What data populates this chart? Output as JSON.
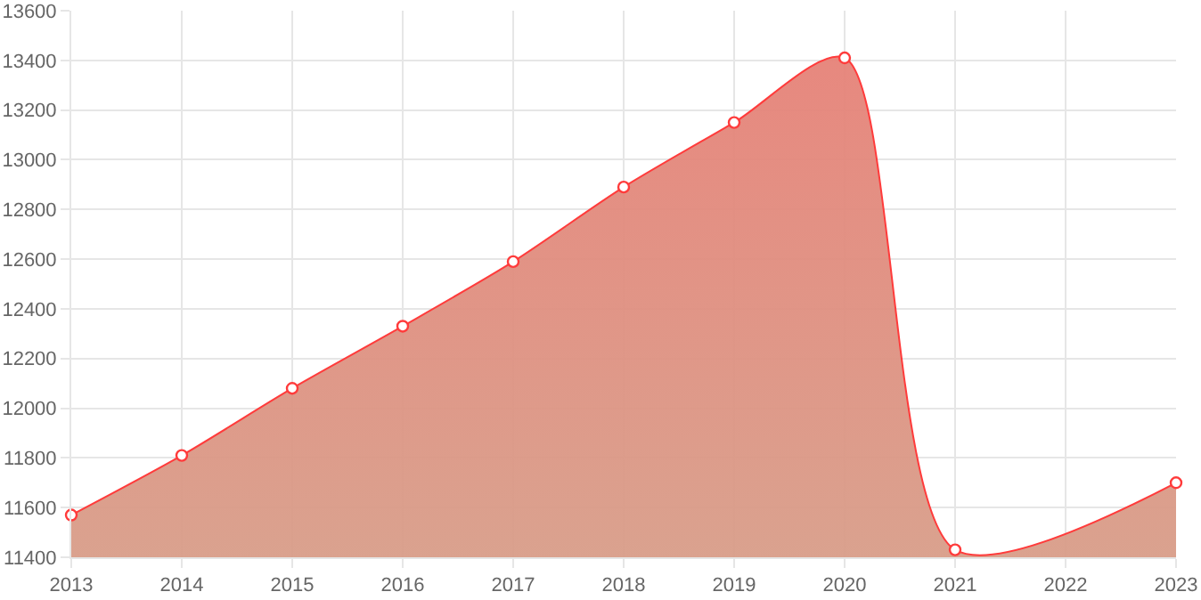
{
  "chart_data": {
    "type": "area",
    "x": [
      2013,
      2014,
      2015,
      2016,
      2017,
      2018,
      2019,
      2020,
      2021,
      2023
    ],
    "series": [
      {
        "color": "#ff3b3b",
        "values": [
          11570,
          11810,
          12080,
          12330,
          12590,
          12890,
          13150,
          13410,
          11430,
          11700
        ]
      }
    ],
    "xlim": [
      2013,
      2023
    ],
    "xticks": [
      2013,
      2014,
      2015,
      2016,
      2017,
      2018,
      2019,
      2020,
      2021,
      2022,
      2023
    ],
    "ylim": [
      11400,
      13600
    ],
    "yticks": [
      11400,
      11600,
      11800,
      12000,
      12200,
      12400,
      12600,
      12800,
      13000,
      13200,
      13400,
      13600
    ],
    "grid": true,
    "legend": false,
    "marker": "circle",
    "line_style": "solid"
  }
}
